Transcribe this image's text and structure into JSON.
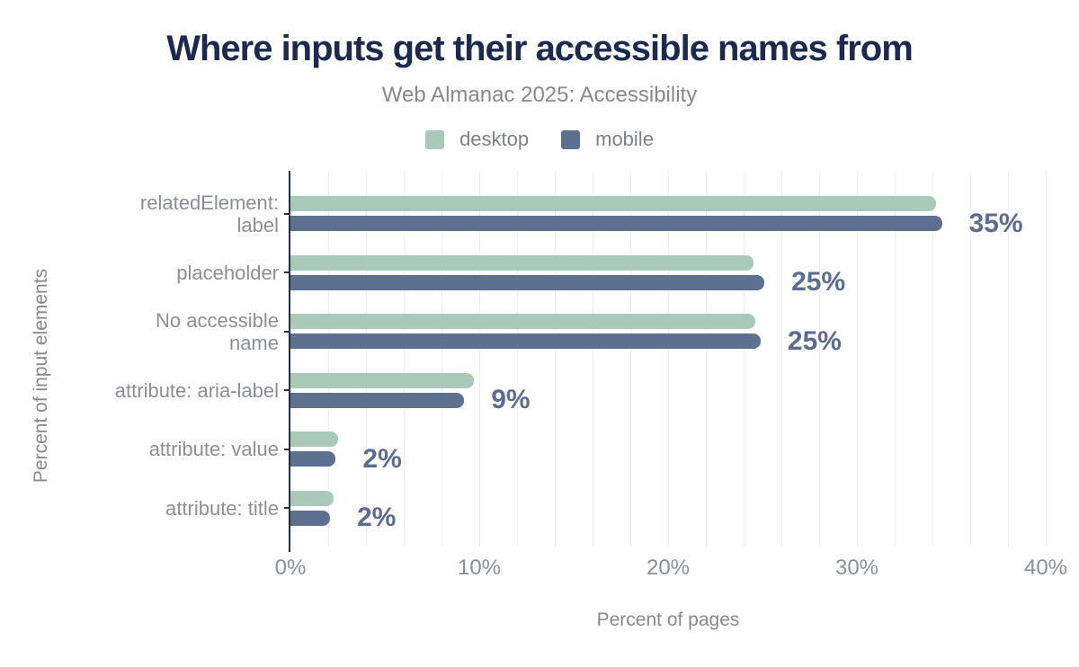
{
  "title": "Where inputs get their accessible names from",
  "subtitle": "Web Almanac 2025: Accessibility",
  "legend": [
    {
      "label": "desktop",
      "color": "#a9cab9"
    },
    {
      "label": "mobile",
      "color": "#5e7090"
    }
  ],
  "colors": {
    "title": "#1b2a4e",
    "subtitle_gray": "#85898e",
    "label_gray": "#8a8f94",
    "desktop_bar": "#a9cab9",
    "mobile_bar": "#5e7090",
    "value_label": "#5a6d91",
    "axis_line": "#23304a",
    "gridline": "#efefef"
  },
  "chart_data": {
    "type": "bar",
    "orientation": "horizontal",
    "title": "Where inputs get their accessible names from",
    "subtitle": "Web Almanac 2025: Accessibility",
    "xlabel": "Percent of pages",
    "ylabel": "Percent of input elements",
    "xlim": [
      0,
      40
    ],
    "x_ticks": [
      "0%",
      "10%",
      "20%",
      "30%",
      "40%"
    ],
    "grid": "vertical, every 2%",
    "legend_position": "top center",
    "categories": [
      "relatedElement:\nlabel",
      "placeholder",
      "No accessible\nname",
      "attribute: aria-label",
      "attribute: value",
      "attribute: title"
    ],
    "series": [
      {
        "name": "desktop",
        "values": [
          34.2,
          24.5,
          24.6,
          9.7,
          2.5,
          2.3
        ]
      },
      {
        "name": "mobile",
        "values": [
          34.5,
          25.1,
          24.9,
          9.2,
          2.4,
          2.1
        ]
      }
    ],
    "value_labels": [
      "35%",
      "25%",
      "25%",
      "9%",
      "2%",
      "2%"
    ]
  }
}
